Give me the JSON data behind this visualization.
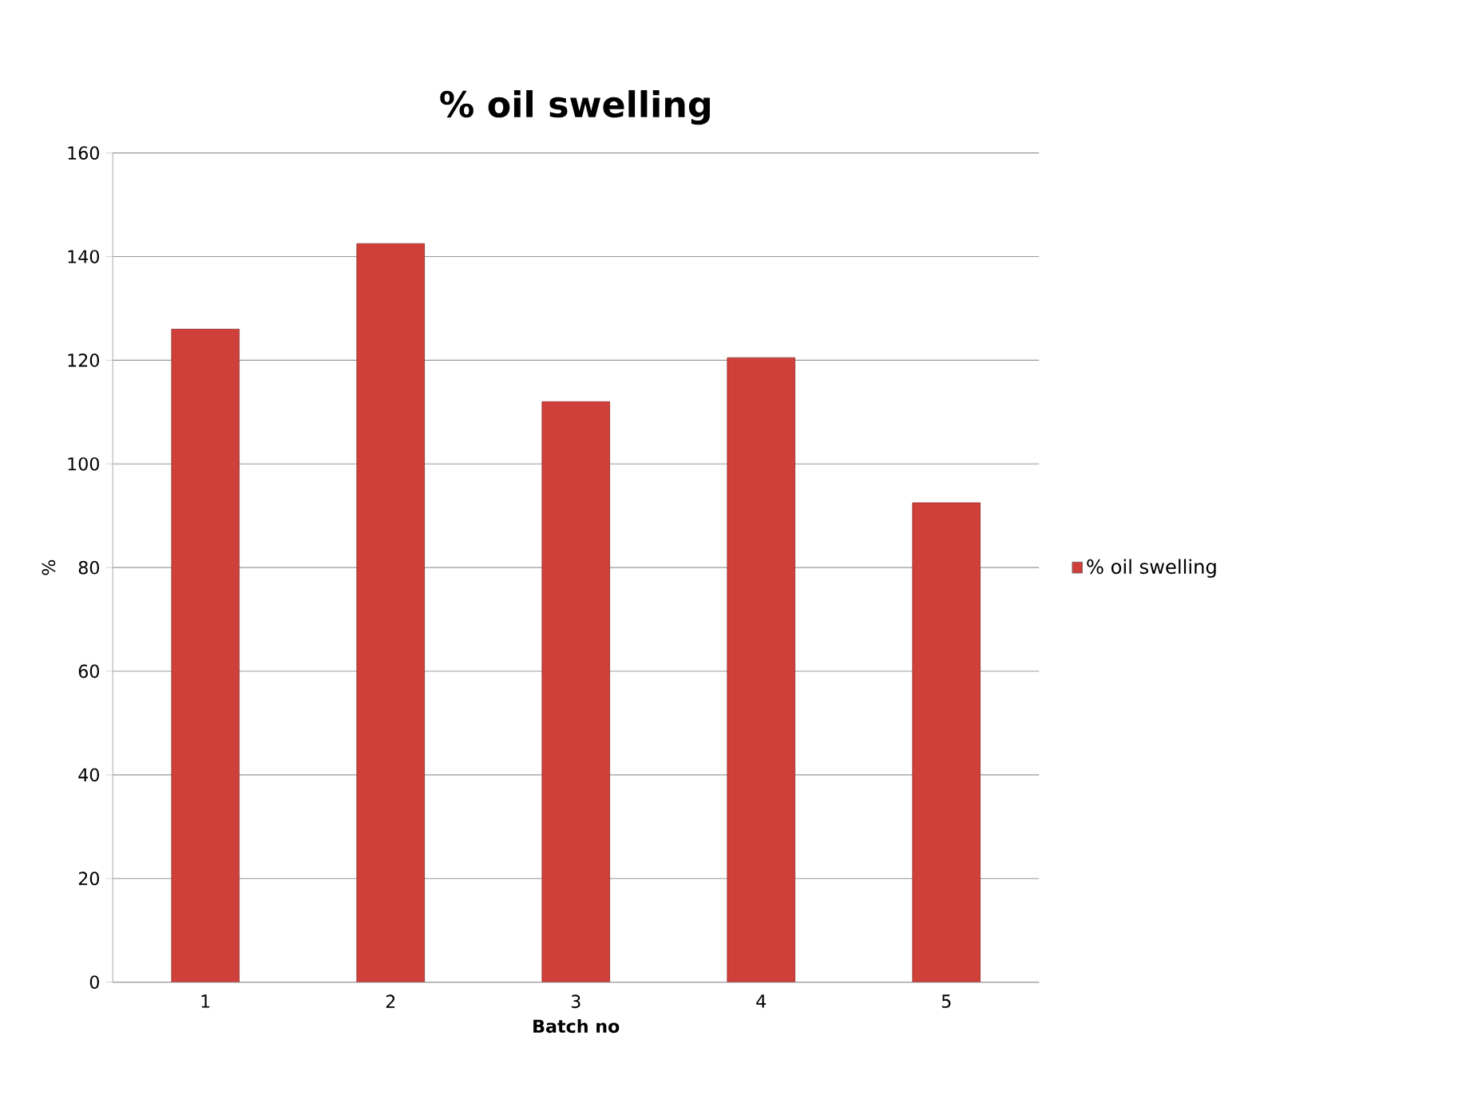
{
  "chart_data": {
    "type": "bar",
    "title": "% oil swelling",
    "xlabel": "Batch no",
    "ylabel": "%",
    "categories": [
      "1",
      "2",
      "3",
      "4",
      "5"
    ],
    "series": [
      {
        "name": "% oil swelling",
        "color": "#d0403a",
        "values": [
          126,
          142.5,
          112,
          120.5,
          92.5
        ]
      }
    ],
    "ylim": [
      0,
      160
    ],
    "yticks": [
      0,
      20,
      40,
      60,
      80,
      100,
      120,
      140,
      160
    ],
    "grid": "y",
    "legend": "right"
  }
}
